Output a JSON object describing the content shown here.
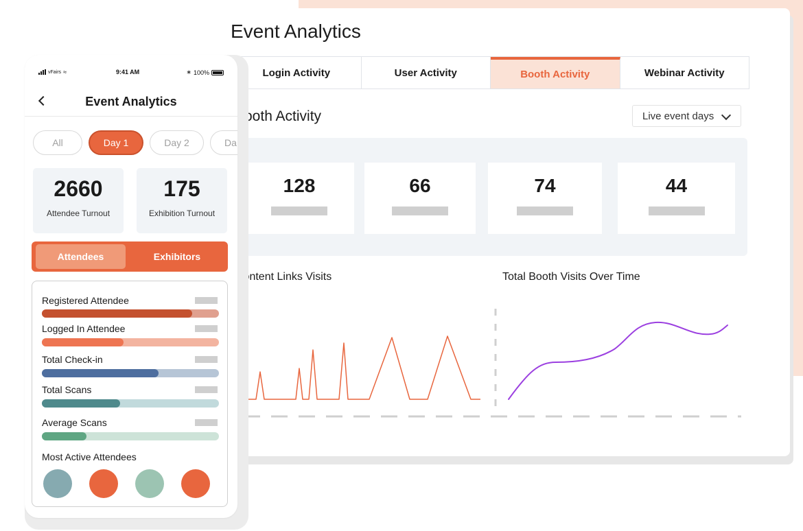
{
  "desktop": {
    "title": "Event Analytics",
    "tabs": [
      {
        "label": "Login Activity",
        "active": false
      },
      {
        "label": "User Activity",
        "active": false
      },
      {
        "label": "Booth Activity",
        "active": true
      },
      {
        "label": "Webinar Activity",
        "active": false
      }
    ],
    "section_title": "Booth Activity",
    "dropdown": {
      "selected": "Live event days"
    },
    "stats": [
      "128",
      "66",
      "74",
      "44"
    ],
    "charts": {
      "left_title": "Content Links Visits",
      "right_title": "Total Booth Visits Over Time"
    }
  },
  "phone": {
    "status": {
      "carrier": "vFairs",
      "time": "9:41 AM",
      "battery": "100%"
    },
    "title": "Event Analytics",
    "pills": [
      {
        "label": "All",
        "active": false
      },
      {
        "label": "Day 1",
        "active": true
      },
      {
        "label": "Day 2",
        "active": false
      },
      {
        "label": "Da",
        "active": false
      }
    ],
    "kpis": [
      {
        "value": "2660",
        "label": "Attendee Turnout"
      },
      {
        "value": "175",
        "label": "Exhibition Turnout"
      }
    ],
    "segment": {
      "active": "Attendees",
      "other": "Exhibitors"
    },
    "metrics": [
      {
        "label": "Registered Attendee",
        "fraction": 0.85,
        "fill": "#c4512f",
        "track": "#e0a08f"
      },
      {
        "label": "Logged In Attendee",
        "fraction": 0.46,
        "fill": "#ee7552",
        "track": "#f3b4a0"
      },
      {
        "label": "Total Check-in",
        "fraction": 0.66,
        "fill": "#4e6e9f",
        "track": "#b6c5d6"
      },
      {
        "label": "Total Scans",
        "fraction": 0.44,
        "fill": "#4f8a8c",
        "track": "#c1dadc"
      },
      {
        "label": "Average Scans",
        "fraction": 0.25,
        "fill": "#5fa683",
        "track": "#cde3d8"
      }
    ],
    "most_active_title": "Most Active Attendees",
    "avatar_colors": [
      "#86aab0",
      "#e8663e",
      "#9cc4b2",
      "#e8663e"
    ]
  },
  "colors": {
    "accent": "#e8663e",
    "tab_active_bg": "#fbe2d6",
    "line_left": "#e8663e",
    "line_right": "#9b3fe0"
  }
}
